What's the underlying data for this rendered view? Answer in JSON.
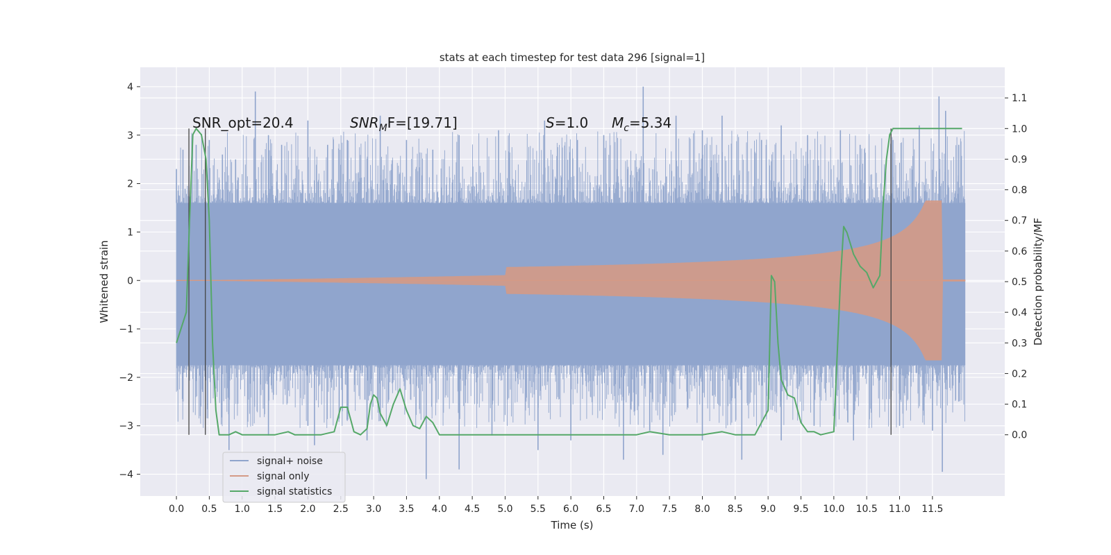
{
  "chart_data": {
    "type": "line",
    "title": "stats at each timestep for test data 296 [signal=1]",
    "xlabel": "Time (s)",
    "ylabel": "Whitened strain",
    "ylabel_right": "Detection probability/MF",
    "xlim": [
      -0.55,
      12.6
    ],
    "ylim": [
      -4.45,
      4.4
    ],
    "ylim_right": [
      -0.2,
      1.2
    ],
    "x_ticks": [
      "0.0",
      "0.5",
      "1.0",
      "1.5",
      "2.0",
      "2.5",
      "3.0",
      "3.5",
      "4.0",
      "4.5",
      "5.0",
      "5.5",
      "6.0",
      "6.5",
      "7.0",
      "7.5",
      "8.0",
      "8.5",
      "9.0",
      "9.5",
      "10.0",
      "10.5",
      "11.0",
      "11.5"
    ],
    "y_ticks": [
      "4",
      "3",
      "2",
      "1",
      "0",
      "−1",
      "−2",
      "−3",
      "−4"
    ],
    "y_right_ticks": [
      "1.1",
      "1.0",
      "0.9",
      "0.8",
      "0.7",
      "0.6",
      "0.5",
      "0.4",
      "0.3",
      "0.2",
      "0.1",
      "0.0"
    ],
    "grid": true,
    "legend_placement": "lower-left",
    "annotations": {
      "snr_opt": "SNR_opt=20.4",
      "snr_mf_sym": "SNR",
      "snr_mf_sub": "M",
      "snr_mf_rest": "F=[19.71]",
      "s_sym": "S",
      "s_rest": "=1.0",
      "mc_sym": "M",
      "mc_sub": "c",
      "mc_rest": "=5.34"
    },
    "series": [
      {
        "name": "signal+ noise",
        "color": "#8fa4cc",
        "duration": 12.0,
        "envelope": [
          -1.75,
          1.6
        ],
        "spikes_top": [
          [
            0.0,
            2.3
          ],
          [
            0.1,
            2.7
          ],
          [
            0.3,
            2.8
          ],
          [
            0.5,
            2.9
          ],
          [
            0.7,
            2.6
          ],
          [
            0.9,
            2.5
          ],
          [
            1.2,
            3.9
          ],
          [
            1.4,
            3.0
          ],
          [
            1.6,
            2.8
          ],
          [
            2.0,
            3.3
          ],
          [
            2.3,
            2.8
          ],
          [
            2.6,
            2.9
          ],
          [
            3.1,
            3.4
          ],
          [
            3.5,
            2.9
          ],
          [
            3.9,
            2.7
          ],
          [
            4.3,
            3.0
          ],
          [
            4.9,
            3.1
          ],
          [
            5.6,
            3.3
          ],
          [
            6.1,
            2.9
          ],
          [
            6.5,
            3.0
          ],
          [
            7.1,
            4.0
          ],
          [
            7.6,
            3.4
          ],
          [
            8.0,
            3.1
          ],
          [
            8.3,
            3.4
          ],
          [
            8.9,
            2.9
          ],
          [
            9.2,
            3.2
          ],
          [
            9.6,
            3.0
          ],
          [
            10.1,
            3.1
          ],
          [
            10.4,
            2.8
          ],
          [
            10.9,
            2.9
          ],
          [
            11.3,
            3.2
          ],
          [
            11.6,
            3.8
          ],
          [
            11.7,
            3.5
          ],
          [
            11.9,
            2.8
          ]
        ],
        "spikes_bottom": [
          [
            0.1,
            -2.5
          ],
          [
            0.4,
            -2.3
          ],
          [
            0.8,
            -3.5
          ],
          [
            1.4,
            -3.2
          ],
          [
            2.0,
            -3.0
          ],
          [
            2.1,
            -3.4
          ],
          [
            2.9,
            -3.3
          ],
          [
            3.1,
            -2.9
          ],
          [
            3.8,
            -4.1
          ],
          [
            4.3,
            -3.9
          ],
          [
            4.8,
            -3.2
          ],
          [
            5.5,
            -3.5
          ],
          [
            6.0,
            -3.3
          ],
          [
            6.8,
            -3.7
          ],
          [
            7.2,
            -3.1
          ],
          [
            7.4,
            -3.6
          ],
          [
            8.0,
            -3.3
          ],
          [
            8.6,
            -3.7
          ],
          [
            9.2,
            -3.3
          ],
          [
            9.7,
            -3.0
          ],
          [
            10.3,
            -3.3
          ],
          [
            11.0,
            -3.0
          ],
          [
            11.5,
            -3.1
          ],
          [
            11.65,
            -3.95
          ],
          [
            11.9,
            -2.5
          ]
        ]
      },
      {
        "name": "signal only",
        "color": "#d49a86",
        "chirp_end": 11.65,
        "amp_peak": 1.65,
        "amp_base": 0.0
      },
      {
        "name": "signal statistics",
        "color": "#55a868",
        "x": [
          0.0,
          0.15,
          0.2,
          0.25,
          0.3,
          0.38,
          0.45,
          0.5,
          0.55,
          0.6,
          0.65,
          0.7,
          0.8,
          0.9,
          1.0,
          1.1,
          1.3,
          1.5,
          1.7,
          1.8,
          2.0,
          2.2,
          2.4,
          2.5,
          2.6,
          2.65,
          2.7,
          2.8,
          2.9,
          2.95,
          3.0,
          3.05,
          3.1,
          3.2,
          3.3,
          3.4,
          3.5,
          3.6,
          3.7,
          3.8,
          3.9,
          4.0,
          4.1,
          4.5,
          5.0,
          5.5,
          6.0,
          6.5,
          7.0,
          7.2,
          7.5,
          8.0,
          8.3,
          8.5,
          8.8,
          9.0,
          9.05,
          9.1,
          9.15,
          9.2,
          9.3,
          9.4,
          9.5,
          9.6,
          9.7,
          9.8,
          10.0,
          10.1,
          10.15,
          10.2,
          10.3,
          10.4,
          10.5,
          10.6,
          10.7,
          10.75,
          10.8,
          10.85,
          10.9,
          11.0,
          11.1,
          11.3,
          11.6,
          11.95
        ],
        "y": [
          0.3,
          0.4,
          0.7,
          0.98,
          1.0,
          0.98,
          0.9,
          0.7,
          0.3,
          0.08,
          0.0,
          0.0,
          0.0,
          0.01,
          0.0,
          0.0,
          0.0,
          0.0,
          0.01,
          0.0,
          0.0,
          0.0,
          0.01,
          0.09,
          0.09,
          0.05,
          0.01,
          0.0,
          0.02,
          0.1,
          0.13,
          0.12,
          0.07,
          0.03,
          0.1,
          0.15,
          0.08,
          0.03,
          0.02,
          0.06,
          0.04,
          0.0,
          0.0,
          0.0,
          0.0,
          0.0,
          0.0,
          0.0,
          0.0,
          0.01,
          0.0,
          0.0,
          0.01,
          0.0,
          0.0,
          0.08,
          0.52,
          0.5,
          0.3,
          0.18,
          0.13,
          0.12,
          0.04,
          0.01,
          0.01,
          0.0,
          0.01,
          0.5,
          0.68,
          0.66,
          0.59,
          0.55,
          0.53,
          0.48,
          0.52,
          0.75,
          0.9,
          0.98,
          1.0,
          1.0,
          1.0,
          1.0,
          1.0,
          1.0
        ]
      }
    ],
    "vertical_markers": [
      0.19,
      0.44,
      10.87
    ]
  }
}
